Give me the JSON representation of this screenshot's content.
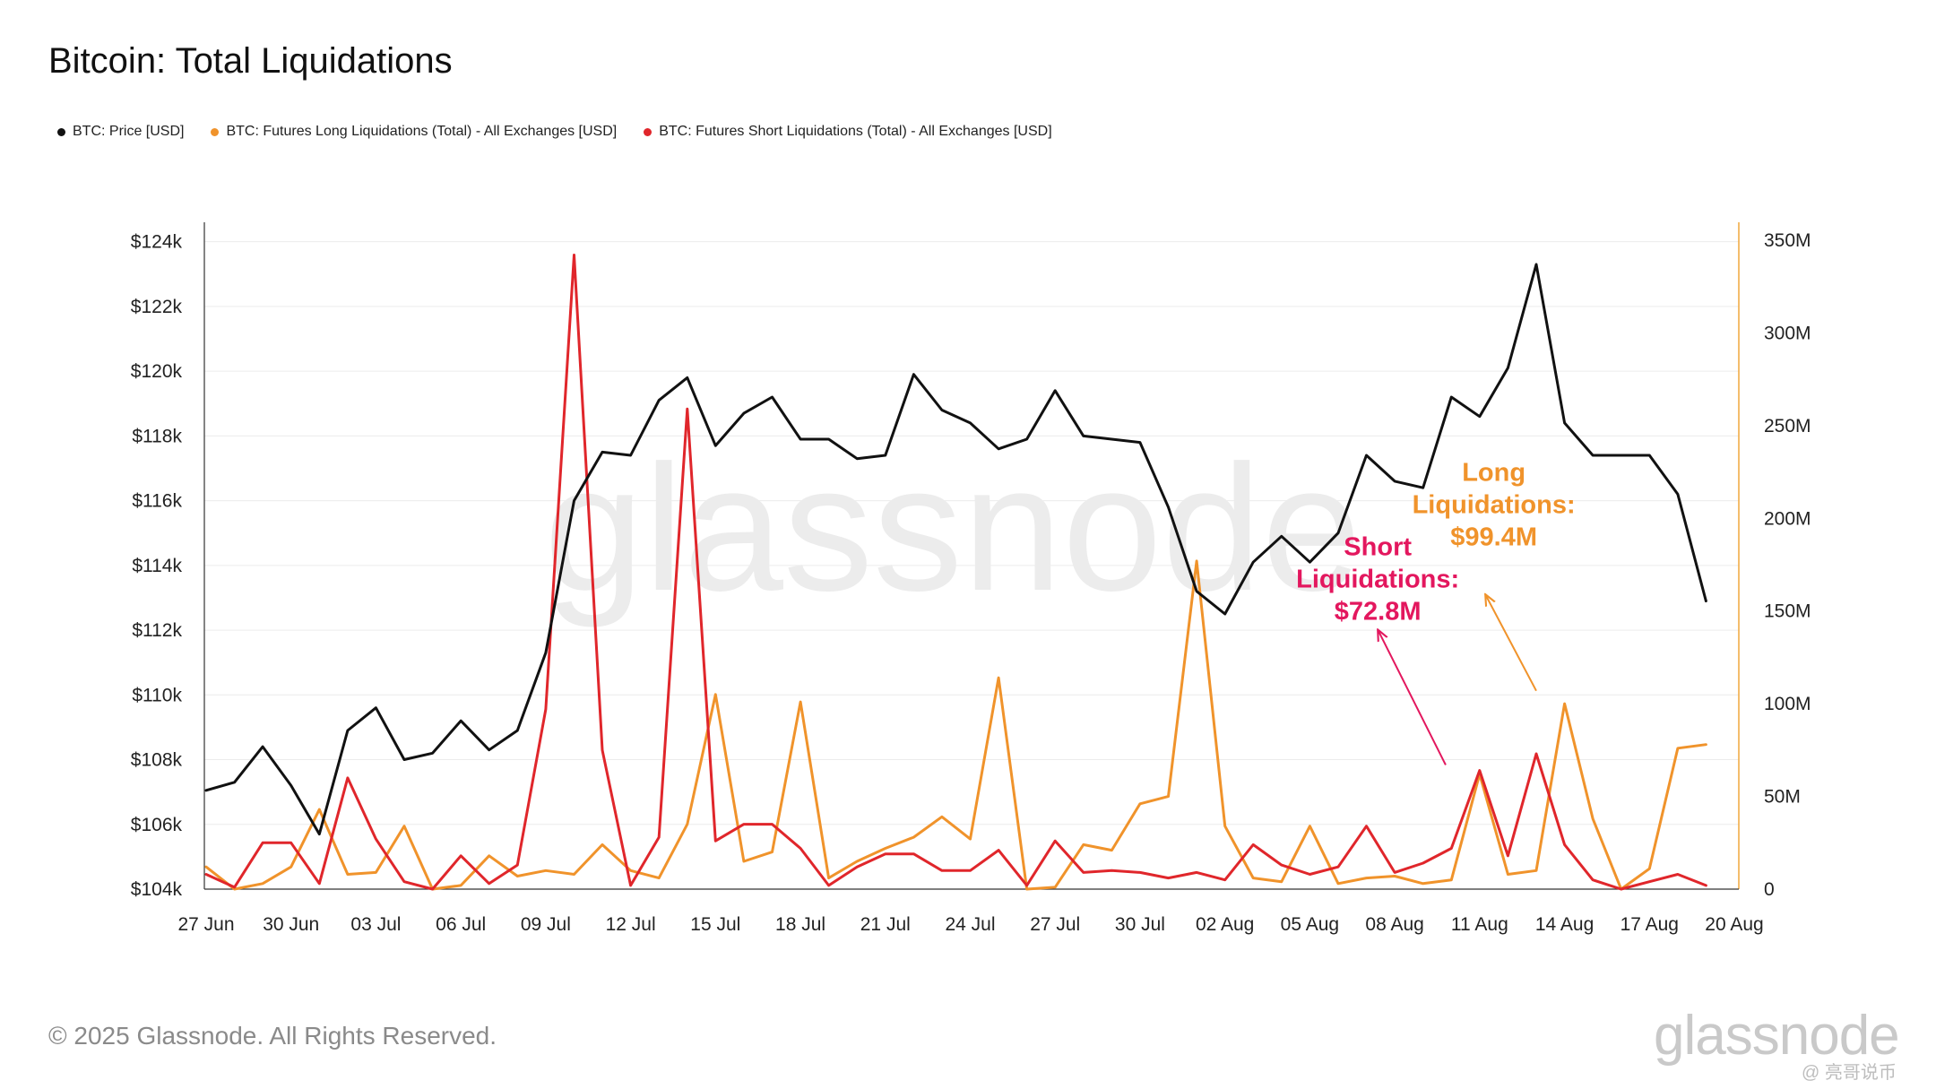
{
  "title": "Bitcoin: Total Liquidations",
  "legend": [
    {
      "label": "BTC: Price [USD]",
      "color": "#111111"
    },
    {
      "label": "BTC: Futures Long Liquidations (Total) - All Exchanges [USD]",
      "color": "#f0932b"
    },
    {
      "label": "BTC: Futures Short Liquidations (Total) - All Exchanges [USD]",
      "color": "#e0262b"
    }
  ],
  "footer": "© 2025 Glassnode. All Rights Reserved.",
  "logo_text": "glassnode",
  "watermark_text": "glassnode",
  "credit": "@ 亮哥说币",
  "annotations": [
    {
      "lines": [
        "Short",
        "Liquidations:",
        "$72.8M"
      ],
      "color": "#e3175e",
      "x_day": 41.4,
      "y_usd": 155000000,
      "tip_day": 41.4,
      "tip_usd": 140000000,
      "tail_day": 43.8,
      "tail_usd": 67000000
    },
    {
      "lines": [
        "Long",
        "Liquidations:",
        "$99.4M"
      ],
      "color": "#f0932b",
      "x_day": 45.5,
      "y_usd": 195000000,
      "tip_day": 45.2,
      "tip_usd": 159000000,
      "tail_day": 47.0,
      "tail_usd": 107000000
    }
  ],
  "chart_data": {
    "type": "line",
    "x_start": "27 Jun",
    "x_end": "20 Aug",
    "x_ticks": [
      "27 Jun",
      "30 Jun",
      "03 Jul",
      "06 Jul",
      "09 Jul",
      "12 Jul",
      "15 Jul",
      "18 Jul",
      "21 Jul",
      "24 Jul",
      "27 Jul",
      "30 Jul",
      "02 Aug",
      "05 Aug",
      "08 Aug",
      "11 Aug",
      "14 Aug",
      "17 Aug",
      "20 Aug"
    ],
    "x_tick_days": [
      0,
      3,
      6,
      9,
      12,
      15,
      18,
      21,
      24,
      27,
      30,
      33,
      36,
      39,
      42,
      45,
      48,
      51,
      54
    ],
    "y_left": {
      "ticks": [
        "$104k",
        "$106k",
        "$108k",
        "$110k",
        "$112k",
        "$114k",
        "$116k",
        "$118k",
        "$120k",
        "$122k",
        "$124k"
      ],
      "values": [
        104000,
        106000,
        108000,
        110000,
        112000,
        114000,
        116000,
        118000,
        120000,
        122000,
        124000
      ],
      "min": 104000,
      "max": 124600
    },
    "y_right": {
      "ticks": [
        "0",
        "50M",
        "100M",
        "150M",
        "200M",
        "250M",
        "300M",
        "350M"
      ],
      "values": [
        0,
        50000000,
        100000000,
        150000000,
        200000000,
        250000000,
        300000000,
        350000000
      ],
      "min": 0,
      "max": 350000000
    },
    "grid": true,
    "series": [
      {
        "name": "BTC: Price [USD]",
        "axis": "left",
        "color": "#111111",
        "values": [
          107050,
          107300,
          108400,
          107200,
          105700,
          108900,
          109600,
          108000,
          108200,
          109200,
          108300,
          108900,
          111300,
          116000,
          117500,
          117400,
          119100,
          119800,
          117700,
          118700,
          119200,
          117900,
          117900,
          117300,
          117400,
          119900,
          118800,
          118400,
          117600,
          117900,
          119400,
          118000,
          117900,
          117800,
          115800,
          113200,
          112500,
          114100,
          114900,
          114100,
          115000,
          117400,
          116600,
          116400,
          119200,
          118600,
          120100,
          123300,
          118400,
          117400,
          117400,
          117400,
          116200,
          112900
        ]
      },
      {
        "name": "BTC: Futures Long Liquidations (Total) - All Exchanges [USD]",
        "axis": "right",
        "color": "#f0932b",
        "values": [
          12000000,
          0,
          3000000,
          12000000,
          43000000,
          8000000,
          9000000,
          34000000,
          0,
          2000000,
          18000000,
          7000000,
          10000000,
          8000000,
          24000000,
          10000000,
          6000000,
          35000000,
          105000000,
          15000000,
          20000000,
          101000000,
          6000000,
          15000000,
          22000000,
          28000000,
          39000000,
          27000000,
          114000000,
          0,
          1000000,
          24000000,
          21000000,
          46000000,
          50000000,
          177000000,
          34000000,
          6000000,
          4000000,
          34000000,
          3000000,
          6000000,
          7000000,
          3000000,
          5000000,
          62000000,
          8000000,
          10000000,
          100000000,
          38000000,
          0,
          11000000,
          76000000,
          78000000
        ]
      },
      {
        "name": "BTC: Futures Short Liquidations (Total) - All Exchanges [USD]",
        "axis": "right",
        "color": "#e0262b",
        "values": [
          8000000,
          1000000,
          25000000,
          25000000,
          3000000,
          60000000,
          27000000,
          4000000,
          0,
          18000000,
          3000000,
          13000000,
          97000000,
          342000000,
          75000000,
          2000000,
          28000000,
          259000000,
          26000000,
          35000000,
          35000000,
          22000000,
          2000000,
          12000000,
          19000000,
          19000000,
          10000000,
          10000000,
          21000000,
          2000000,
          26000000,
          9000000,
          10000000,
          9000000,
          6000000,
          9000000,
          5000000,
          24000000,
          13000000,
          8000000,
          12000000,
          34000000,
          9000000,
          14000000,
          22000000,
          64000000,
          18000000,
          73000000,
          24000000,
          5000000,
          0,
          4000000,
          8000000,
          2000000
        ]
      }
    ]
  }
}
